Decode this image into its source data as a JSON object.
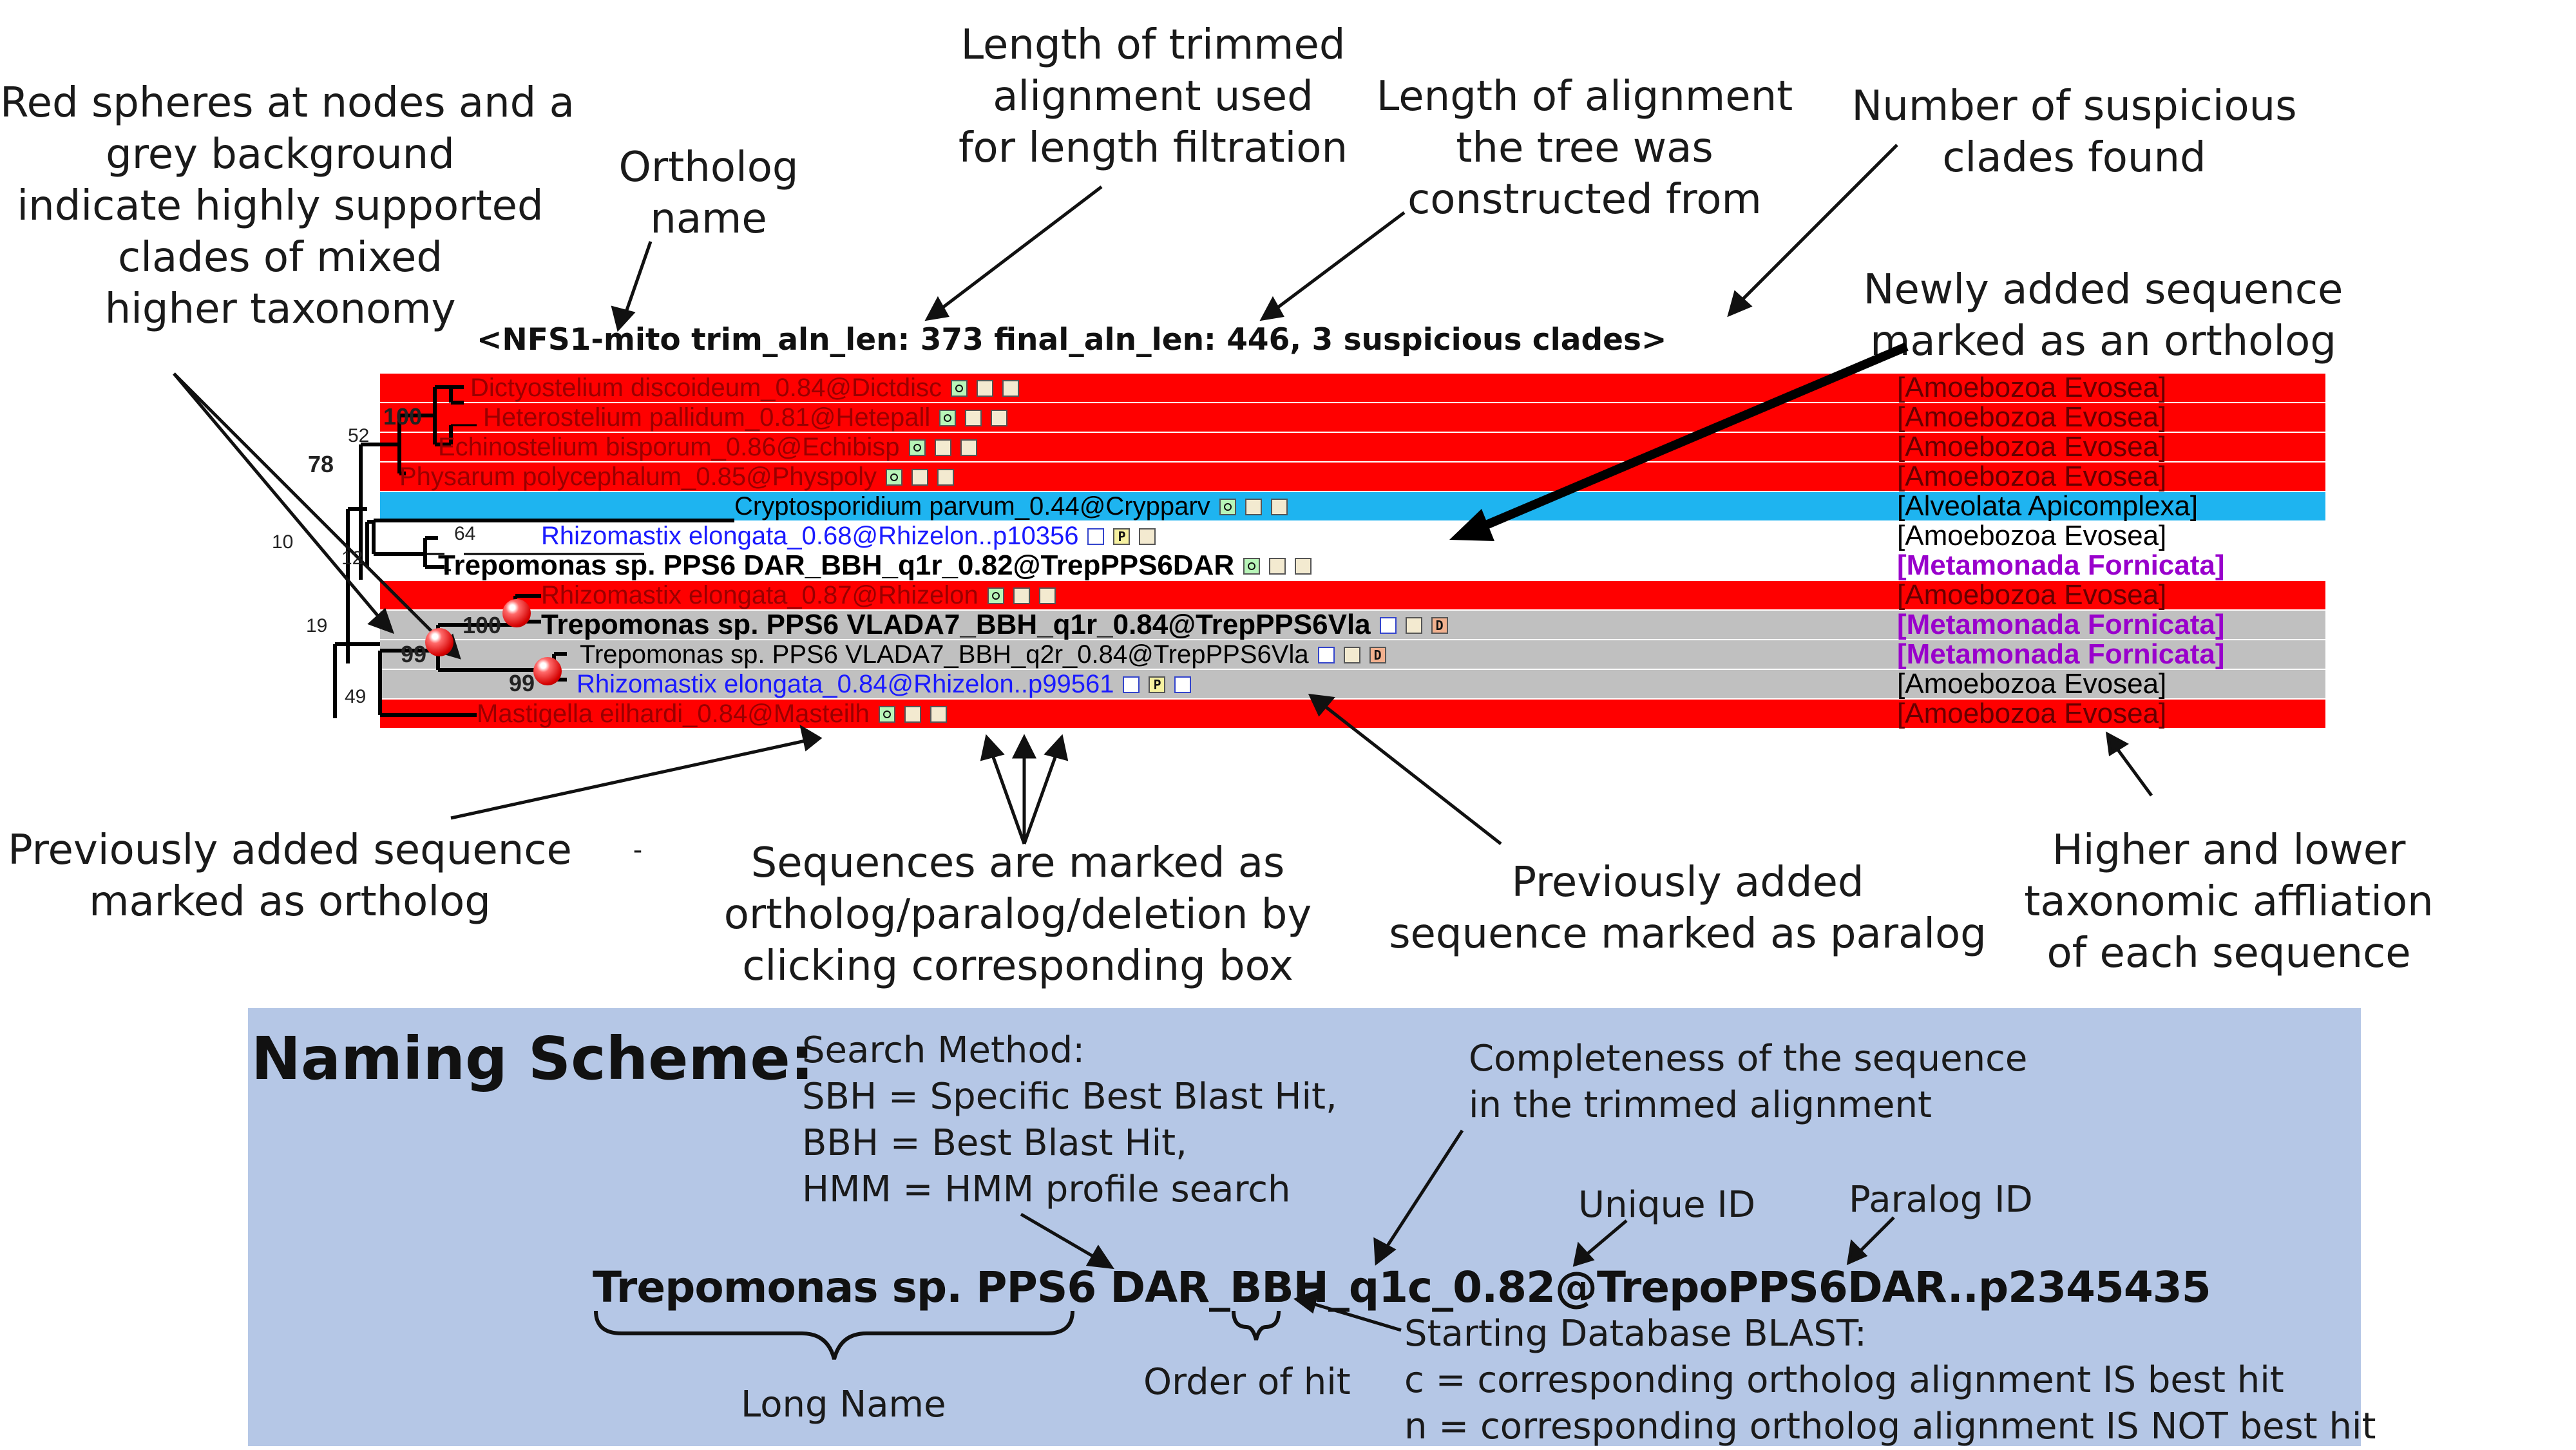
{
  "tree": {
    "title": "<NFS1-mito  trim_aln_len: 373   final_aln_len: 446,  3 suspicious clades>",
    "rows": [
      {
        "name": "Dictyostelium discoideum_0.84@Dictdisc",
        "taxon": "[Amoebozoa Evosea]",
        "band": "#ff0000",
        "color": "#990000",
        "bold": false,
        "boxes": [
          "o",
          "blank",
          "blank"
        ]
      },
      {
        "name": "Heterostelium pallidum_0.81@Hetepall",
        "taxon": "[Amoebozoa Evosea]",
        "band": "#ff0000",
        "color": "#990000",
        "bold": false,
        "boxes": [
          "o",
          "blank",
          "blank"
        ]
      },
      {
        "name": "Echinostelium bisporum_0.86@Echibisp",
        "taxon": "[Amoebozoa Evosea]",
        "band": "#ff0000",
        "color": "#990000",
        "bold": false,
        "boxes": [
          "o",
          "blank",
          "blank"
        ]
      },
      {
        "name": "Physarum polycephalum_0.85@Physpoly",
        "taxon": "[Amoebozoa Evosea]",
        "band": "#ff0000",
        "color": "#990000",
        "bold": false,
        "boxes": [
          "o",
          "blank",
          "blank"
        ]
      },
      {
        "name": "Cryptosporidium parvum_0.44@Crypparv",
        "taxon": "[Alveolata Apicomplexa]",
        "band": "#1eb4f0",
        "color": "#000000",
        "bold": false,
        "boxes": [
          "o",
          "blank",
          "blank"
        ]
      },
      {
        "name": "Rhizomastix elongata_0.68@Rhizelon..p10356",
        "taxon": "[Amoebozoa Evosea]",
        "band": "#ffffff",
        "color": "#1a1aff",
        "bold": false,
        "boxes": [
          "empty",
          "p",
          "blank"
        ]
      },
      {
        "name": "Trepomonas sp. PPS6 DAR_BBH_q1r_0.82@TrepPPS6DAR",
        "taxon": "[Metamonada Fornicata]",
        "band": "#ffffff",
        "color": "#000000",
        "bold": true,
        "taxon_color": "#9900cc",
        "boxes": [
          "o",
          "blank",
          "blank"
        ]
      },
      {
        "name": "Rhizomastix elongata_0.87@Rhizelon",
        "taxon": "[Amoebozoa Evosea]",
        "band": "#ff0000",
        "color": "#990000",
        "bold": false,
        "boxes": [
          "o",
          "blank",
          "blank"
        ]
      },
      {
        "name": "Trepomonas sp. PPS6 VLADA7_BBH_q1r_0.84@TrepPPS6Vla",
        "taxon": "[Metamonada Fornicata]",
        "band": "#c0c0c0",
        "color": "#000000",
        "bold": true,
        "taxon_color": "#9900cc",
        "boxes": [
          "empty",
          "blank",
          "d"
        ]
      },
      {
        "name": "Trepomonas sp. PPS6 VLADA7_BBH_q2r_0.84@TrepPPS6Vla",
        "taxon": "[Metamonada Fornicata]",
        "band": "#c0c0c0",
        "color": "#000000",
        "bold": false,
        "taxon_color": "#9900cc",
        "boxes": [
          "empty",
          "blank",
          "d"
        ]
      },
      {
        "name": "Rhizomastix elongata_0.84@Rhizelon..p99561",
        "taxon": "[Amoebozoa Evosea]",
        "band": "#c0c0c0",
        "color": "#1a1aff",
        "bold": false,
        "boxes": [
          "empty",
          "p",
          "empty"
        ]
      },
      {
        "name": "Mastigella eilhardi_0.84@Masteilh",
        "taxon": "[Amoebozoa Evosea]",
        "band": "#ff0000",
        "color": "#990000",
        "bold": false,
        "boxes": [
          "o",
          "blank",
          "blank"
        ]
      }
    ],
    "bootstraps": {
      "b100a": "100",
      "b52": "52",
      "b78": "78",
      "b10": "10",
      "b64": "64",
      "b12": "12",
      "b100b": "100",
      "b19": "19",
      "b99a": "99",
      "b99b": "99",
      "b49": "49"
    }
  },
  "annotations": {
    "red_spheres": [
      "Red spheres at nodes and a",
      "grey background",
      "indicate highly supported",
      "clades of mixed",
      "higher taxonomy"
    ],
    "ortholog_name": [
      "Ortholog",
      "name"
    ],
    "trimmed_len": [
      "Length of trimmed",
      "alignment used",
      "for length filtration"
    ],
    "final_len": [
      "Length of alignment",
      "the tree was",
      "constructed from"
    ],
    "suspicious": [
      "Number of suspicious",
      "clades found"
    ],
    "newly_added": [
      "Newly added sequence",
      "marked as an ortholog"
    ],
    "prev_ortholog": [
      "Previously added sequence",
      "marked as ortholog"
    ],
    "boxes_help": [
      "Sequences are marked as",
      "ortholog/paralog/deletion by",
      "clicking corresponding box"
    ],
    "prev_paralog": [
      "Previously added",
      "sequence marked as paralog"
    ],
    "taxonomy": [
      "Higher and lower",
      "taxonomic affliation",
      "of each sequence"
    ],
    "stray_mark": "-"
  },
  "naming": {
    "title": "Naming Scheme:",
    "search_method": [
      "Search Method:",
      "SBH = Specific Best Blast Hit,",
      "BBH = Best Blast Hit,",
      "HMM = HMM profile search"
    ],
    "completeness": [
      "Completeness of the sequence",
      "in the trimmed alignment"
    ],
    "unique_id": "Unique ID",
    "paralog_id": "Paralog ID",
    "example": "Trepomonas sp. PPS6 DAR_BBH_q1c_0.82@TrepoPPS6DAR..p2345435",
    "long_name": "Long Name",
    "order_of_hit": "Order of hit",
    "starting_db": [
      "Starting Database BLAST:",
      "c = corresponding ortholog alignment IS best hit",
      "n =  corresponding ortholog alignment IS NOT best hit"
    ]
  }
}
